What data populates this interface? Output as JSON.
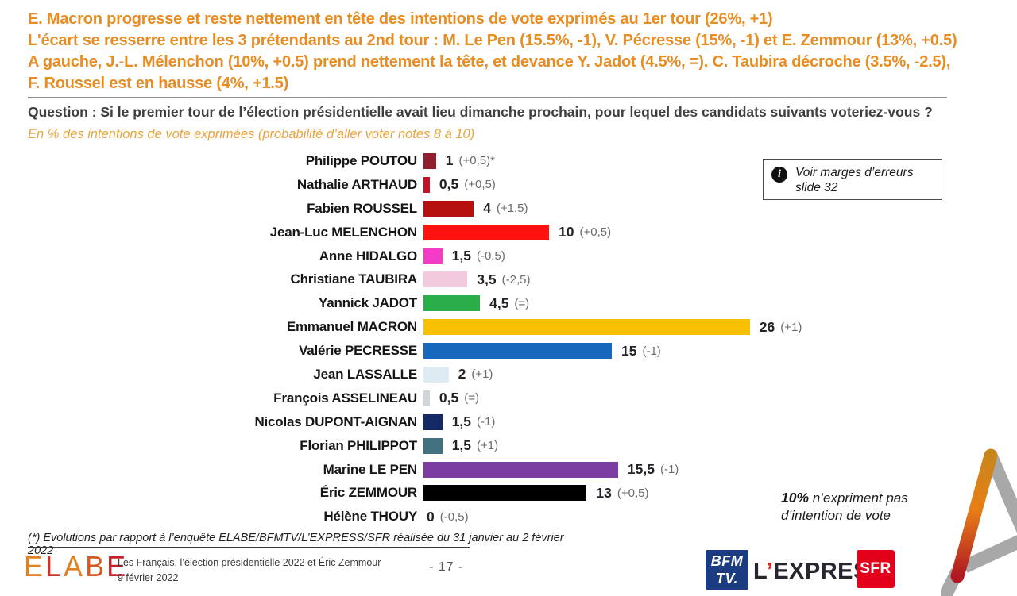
{
  "header": {
    "lines": [
      "E. Macron progresse et reste nettement en tête des intentions de vote exprimés au 1er tour (26%, +1)",
      "L'écart se resserre entre les 3 prétendants au 2nd tour : M. Le Pen (15.5%, -1), V. Pécresse (15%, -1) et E. Zemmour (13%, +0.5)",
      "A gauche, J.-L. Mélenchon (10%, +0.5) prend nettement la tête, et devance Y. Jadot (4.5%, =). C. Taubira décroche (3.5%, -2.5),",
      "F. Roussel est en hausse (4%, +1.5)"
    ],
    "color": "#E78D23"
  },
  "question": {
    "label": "Question : Si le premier tour de l’élection présidentielle avait lieu dimanche prochain, pour lequel des candidats suivants voteriez-vous ?",
    "subtitle": "En % des intentions de vote exprimées (probabilité d’aller voter notes 8 à 10)"
  },
  "chart_data": {
    "type": "bar",
    "orientation": "horizontal",
    "unit": "% of expressed vote intentions",
    "xlim": [
      0,
      26
    ],
    "categories": [
      "Philippe POUTOU",
      "Nathalie ARTHAUD",
      "Fabien ROUSSEL",
      "Jean-Luc MELENCHON",
      "Anne HIDALGO",
      "Christiane TAUBIRA",
      "Yannick JADOT",
      "Emmanuel MACRON",
      "Valérie PECRESSE",
      "Jean LASSALLE",
      "François ASSELINEAU",
      "Nicolas DUPONT-AIGNAN",
      "Florian PHILIPPOT",
      "Marine LE PEN",
      "Éric ZEMMOUR",
      "Hélène THOUY"
    ],
    "values": [
      1,
      0.5,
      4,
      10,
      1.5,
      3.5,
      4.5,
      26,
      15,
      2,
      0.5,
      1.5,
      1.5,
      15.5,
      13,
      0
    ],
    "value_labels": [
      "1",
      "0,5",
      "4",
      "10",
      "1,5",
      "3,5",
      "4,5",
      "26",
      "15",
      "2",
      "0,5",
      "1,5",
      "1,5",
      "15,5",
      "13",
      "0"
    ],
    "evolutions": [
      "(+0,5)*",
      "(+0,5)",
      "(+1,5)",
      "(+0,5)",
      "(-0,5)",
      "(-2,5)",
      "(=)",
      "(+1)",
      "(-1)",
      "(+1)",
      "(=)",
      "(-1)",
      "(+1)",
      "(-1)",
      "(+0,5)",
      "(-0,5)"
    ],
    "colors": [
      "#8E1F2F",
      "#C41228",
      "#B5110F",
      "#FF1111",
      "#F23CC8",
      "#F3C9DD",
      "#2AAE4A",
      "#F9C004",
      "#1668BD",
      "#DEEBF2",
      "#CFD5D8",
      "#142A66",
      "#41707F",
      "#7C3DA2",
      "#000000",
      null
    ]
  },
  "info_box": {
    "icon": "info-icon",
    "text": "Voir marges d’erreurs slide 32"
  },
  "aside_note": {
    "bold": "10%",
    "rest": " n’expriment pas d’intention de vote"
  },
  "footnote": "(*) Evolutions par rapport à l’enquête ELABE/BFMTV/L’EXPRESS/SFR réalisée du 31 janvier au 2 février 2022",
  "footer": {
    "logo_letters": [
      "E",
      "L",
      "A",
      "B",
      "E"
    ],
    "logo_colors": [
      "#E08122",
      "#C8362A",
      "#E08122",
      "#D55A1F",
      "#C32028"
    ],
    "study": "Les Français, l’élection présidentielle 2022 et Éric Zemmour",
    "date": "9 février 2022",
    "page": "- 17 -",
    "partners": {
      "bfmtv": {
        "lines": [
          "BFM",
          "TV."
        ]
      },
      "express": {
        "parts": [
          "L",
          "’",
          "EXPRESS"
        ]
      },
      "sfr": {
        "text": "SFR"
      }
    }
  }
}
